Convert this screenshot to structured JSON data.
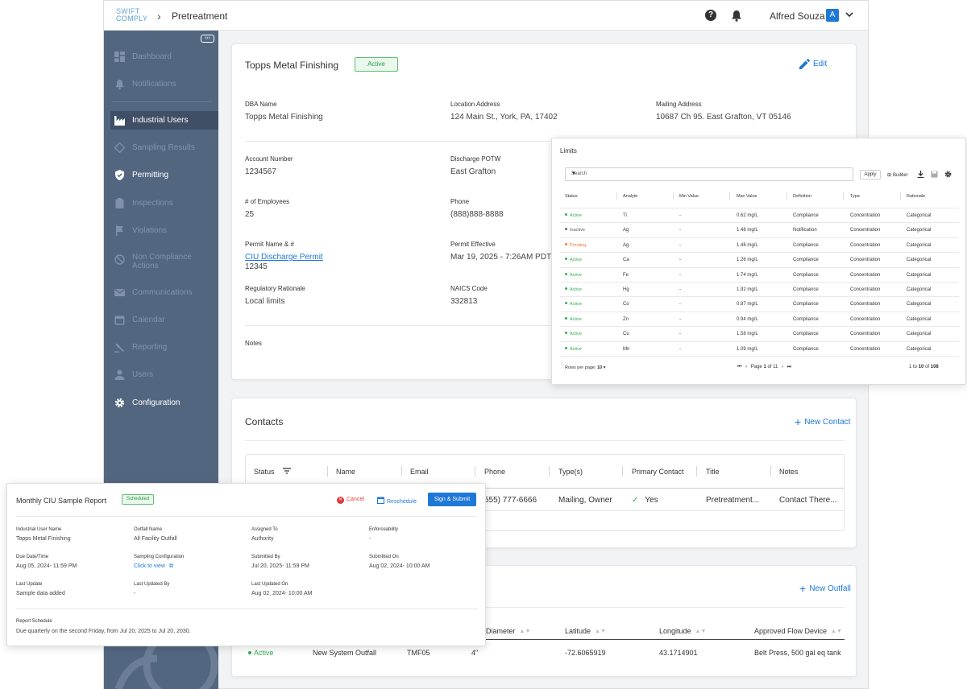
{
  "topbar": {
    "logo_top": "SWIFT",
    "logo_bottom": "COMPLY",
    "breadcrumb": "Pretreatment",
    "user_name": "Alfred Souza",
    "user_initial": "A"
  },
  "sidebar": {
    "collapse": "‹‹‹",
    "items": [
      {
        "label": "Dashboard",
        "icon": "dashboard-icon"
      },
      {
        "label": "Notifications",
        "icon": "bell-icon"
      },
      {
        "label": "Industrial Users",
        "icon": "factory-icon"
      },
      {
        "label": "Sampling Results",
        "icon": "sampling-icon"
      },
      {
        "label": "Permitting",
        "icon": "shield-icon"
      },
      {
        "label": "Inspections",
        "icon": "clipboard-icon"
      },
      {
        "label": "Violations",
        "icon": "flag-icon"
      },
      {
        "label": "Non Compliance Actions",
        "icon": "block-icon"
      },
      {
        "label": "Communications",
        "icon": "mail-icon"
      },
      {
        "label": "Calendar",
        "icon": "calendar-icon"
      },
      {
        "label": "Reporting",
        "icon": "gavel-icon"
      },
      {
        "label": "Users",
        "icon": "person-icon"
      },
      {
        "label": "Configuration",
        "icon": "gear-icon"
      }
    ]
  },
  "facility": {
    "name": "Topps Metal Finishing",
    "status": "Active",
    "edit": "Edit",
    "fields": {
      "dba_label": "DBA Name",
      "dba": "Topps Metal Finishing",
      "location_label": "Location Address",
      "location": "124 Main St., York, PA, 17402",
      "mailing_label": "Mailing Address",
      "mailing": "10687 Ch 95. East Grafton, VT 05146",
      "account_label": "Account Number",
      "account": "1234567",
      "potw_label": "Discharge POTW",
      "potw": "East Grafton",
      "employees_label": "# of Employees",
      "employees": "25",
      "phone_label": "Phone",
      "phone": "(888)888-8888",
      "permit_label": "Permit Name & #",
      "permit_name": "CIU Discharge Permit ",
      "permit_no": "12345",
      "effective_label": "Permit Effective",
      "effective": "Mar 19, 2025 - 7:26AM PDT",
      "rationale_label": "Regulatory Rationale",
      "rationale": "Local limits",
      "naics_label": "NAICS Code",
      "naics": "332813",
      "notes_label": "Notes"
    }
  },
  "contacts": {
    "title": "Contacts",
    "new": "New Contact",
    "headers": [
      "Status",
      "Name",
      "Email",
      "Phone",
      "Type(s)",
      "Primary Contact",
      "Title",
      "Notes"
    ],
    "row": {
      "phone": "555) 777-6666",
      "types": "Mailing, Owner",
      "primary": "Yes",
      "title": "Pretreatment...",
      "notes": "Contact There..."
    }
  },
  "outfalls": {
    "new": "New Outfall",
    "headers": [
      "Diameter",
      "Latitude",
      "Longitude",
      "Approved Flow Device"
    ],
    "row": {
      "status": "Active",
      "name": "New System Outfall",
      "id": "TMF05",
      "diameter": "4\"",
      "latitude": "-72.6065919",
      "longitude": "43.1714901",
      "device": "Belt Press, 500 gal eq tank"
    }
  },
  "limits": {
    "title": "Limits",
    "search": "Search",
    "apply": "Apply",
    "builder": "Builder",
    "headers": [
      "Status",
      "Analyte",
      "Min Value",
      "Max Value",
      "Definition",
      "Type",
      "Rationale"
    ],
    "rows": [
      {
        "status": "Active",
        "analyte": "Ti",
        "min": "-",
        "max": "0.62 mg/L",
        "definition": "Compliance",
        "type": "Concentration",
        "rationale": "Categorical"
      },
      {
        "status": "Inactive",
        "analyte": "Ag",
        "min": "-",
        "max": "1.48 mg/L",
        "definition": "Notification",
        "type": "Concentration",
        "rationale": "Categorical"
      },
      {
        "status": "Pending",
        "analyte": "Ag",
        "min": "-",
        "max": "1.48 mg/L",
        "definition": "Compliance",
        "type": "Concentration",
        "rationale": "Categorical"
      },
      {
        "status": "Active",
        "analyte": "Ca",
        "min": "-",
        "max": "1.26 mg/L",
        "definition": "Compliance",
        "type": "Concentration",
        "rationale": "Categorical"
      },
      {
        "status": "Active",
        "analyte": "Fe",
        "min": "-",
        "max": "1.74 mg/L",
        "definition": "Compliance",
        "type": "Concentration",
        "rationale": "Categorical"
      },
      {
        "status": "Active",
        "analyte": "Hg",
        "min": "-",
        "max": "1.92 mg/L",
        "definition": "Compliance",
        "type": "Concentration",
        "rationale": "Categorical"
      },
      {
        "status": "Active",
        "analyte": "Co",
        "min": "-",
        "max": "0.87 mg/L",
        "definition": "Compliance",
        "type": "Concentration",
        "rationale": "Categorical"
      },
      {
        "status": "Active",
        "analyte": "Zn",
        "min": "-",
        "max": "0.94 mg/L",
        "definition": "Compliance",
        "type": "Concentration",
        "rationale": "Categorical"
      },
      {
        "status": "Active",
        "analyte": "Cu",
        "min": "-",
        "max": "1.58 mg/L",
        "definition": "Compliance",
        "type": "Concentration",
        "rationale": "Categorical"
      },
      {
        "status": "Active",
        "analyte": "Mn",
        "min": "-",
        "max": "1.09 mg/L",
        "definition": "Compliance",
        "type": "Concentration",
        "rationale": "Categorical"
      }
    ],
    "rows_per_page_label": "Rows per page:",
    "rows_per_page": "10",
    "page_label": "Page",
    "page": "1",
    "of": "of",
    "pages": "11",
    "range_from": "1",
    "range_to_word": "to",
    "range_to": "10",
    "range_of": "of",
    "total": "108"
  },
  "report": {
    "title": "Monthly CIU Sample Report",
    "status": "Scheduled",
    "cancel": "Cancel",
    "reschedule": "Reschedule",
    "submit": "Sign & Submit",
    "iu_label": "Industrial User Name",
    "iu": "Topps Metal Finishing",
    "outfall_label": "Outfall Name",
    "outfall": "All Facility Outfall",
    "assigned_label": "Assigned To",
    "assigned": "Authority",
    "enforce_label": "Enforceability",
    "enforce": "-",
    "due_label": "Due Date/Time",
    "due": "Aug 05, 2024- 11:59 PM",
    "config_label": "Sampling Configuration",
    "config": "Click to view",
    "subby_label": "Submitted By",
    "subby": "Jul 20, 2025- 11:59 PM",
    "subon_label": "Submitted On",
    "subon": "Aug 02, 2024- 10:00 AM",
    "lastupd_label": "Last Update",
    "lastupd": "Sample data added",
    "lastby_label": "Last Updated By",
    "lastby": "-",
    "laston_label": "Last Updated On",
    "laston": "Aug 02, 2024- 10:00 AM",
    "schedule_label": "Report Schedule",
    "schedule": "Due quarterly on the second Friday, from Jul 20, 2025 to Jul 20, 2030."
  }
}
